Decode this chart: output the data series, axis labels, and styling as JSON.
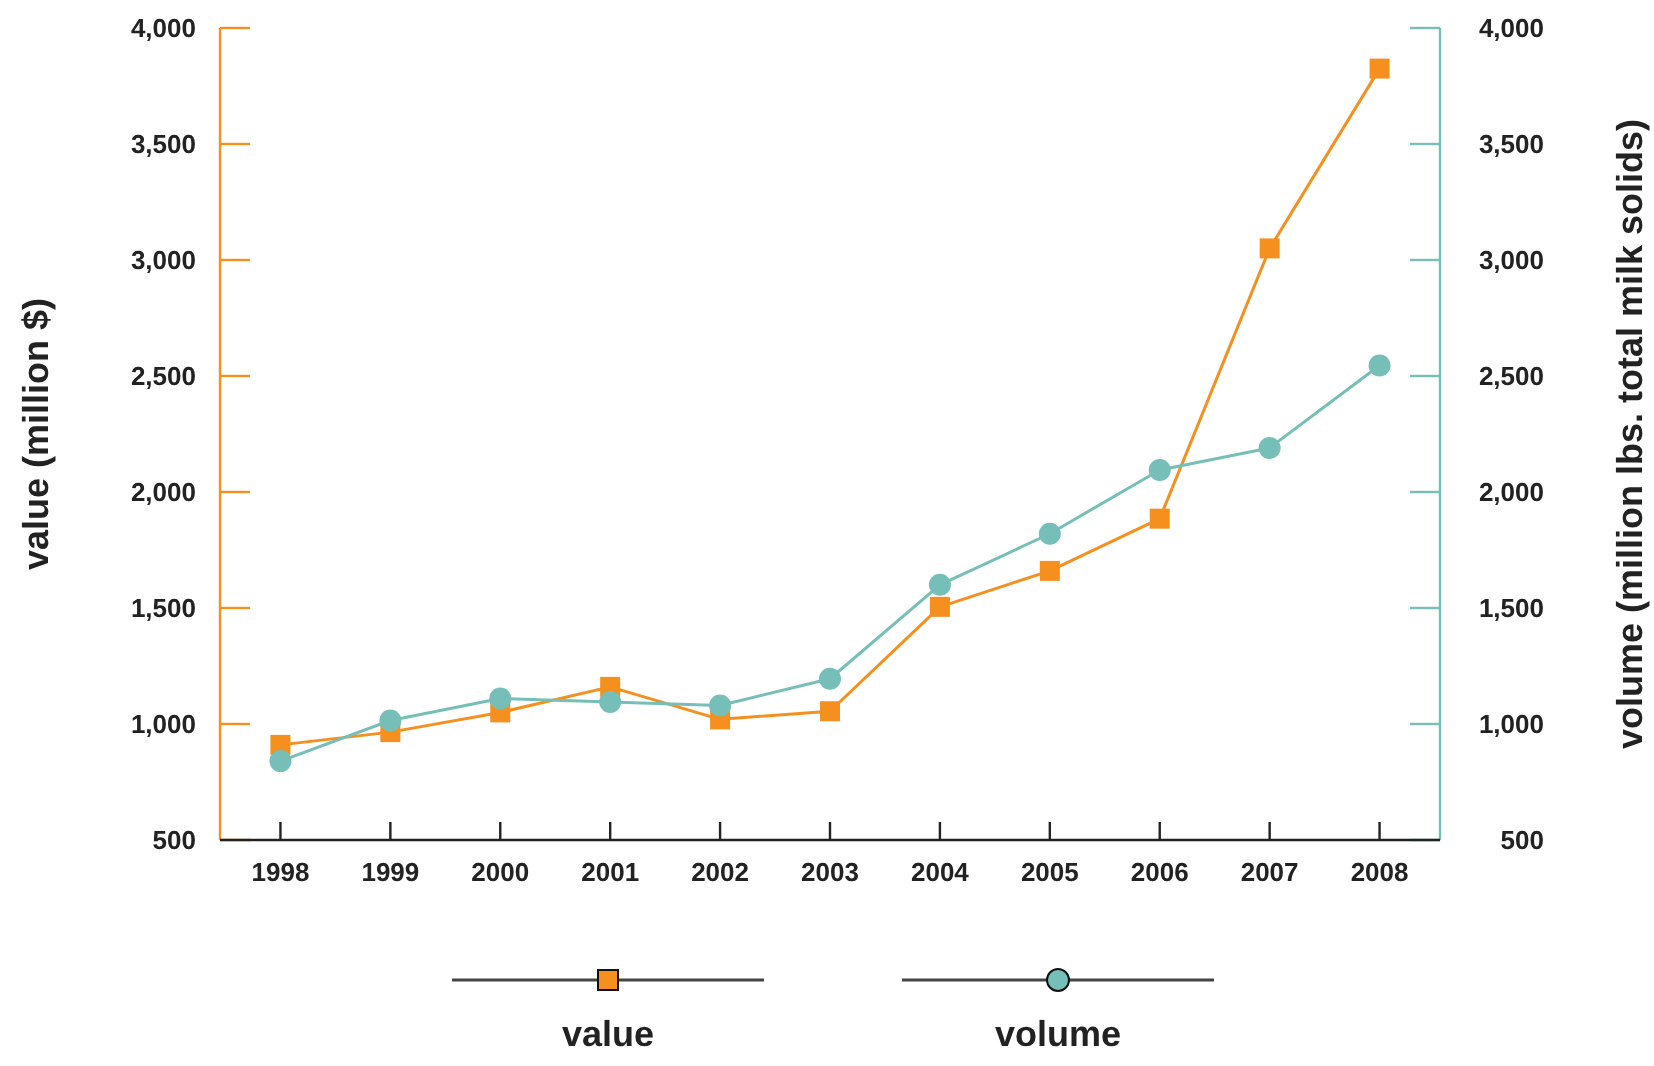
{
  "chart_data": {
    "type": "line",
    "xlabel": null,
    "ylabel": "value (million $)",
    "y2label": "volume (million lbs. total milk solids)",
    "categories": [
      "1998",
      "1999",
      "2000",
      "2001",
      "2002",
      "2003",
      "2004",
      "2005",
      "2006",
      "2007",
      "2008"
    ],
    "series": [
      {
        "name": "value",
        "color": "#f5901e",
        "marker": "square",
        "values": [
          910,
          965,
          1050,
          1160,
          1020,
          1055,
          1505,
          1660,
          1885,
          3050,
          3825
        ]
      },
      {
        "name": "volume",
        "color": "#76bfb8",
        "marker": "circle",
        "axis": "y2",
        "values": [
          840,
          1015,
          1110,
          1095,
          1080,
          1195,
          1600,
          1820,
          2095,
          2190,
          2545
        ]
      }
    ],
    "ylim": [
      500,
      4000
    ],
    "yticks": [
      500,
      {
        "value": 1000,
        "label": "1,000"
      },
      {
        "value": 1500,
        "label": "1,500"
      },
      {
        "value": 2000,
        "label": "2,000"
      },
      {
        "value": 2500,
        "label": "2,500"
      },
      {
        "value": 3000,
        "label": "3,000"
      },
      {
        "value": 3500,
        "label": "3,500"
      },
      {
        "value": 4000,
        "label": "4,000"
      }
    ],
    "y2lim": [
      500,
      4000
    ],
    "y2ticks": [
      500,
      {
        "value": 1000,
        "label": "1,000"
      },
      {
        "value": 1500,
        "label": "1,500"
      },
      {
        "value": 2000,
        "label": "2,000"
      },
      {
        "value": 2500,
        "label": "2,500"
      },
      {
        "value": 3000,
        "label": "3,000"
      },
      {
        "value": 3500,
        "label": "3,500"
      },
      {
        "value": 4000,
        "label": "4,000"
      }
    ],
    "grid": false,
    "legend": "bottom",
    "line_style": "solid"
  }
}
